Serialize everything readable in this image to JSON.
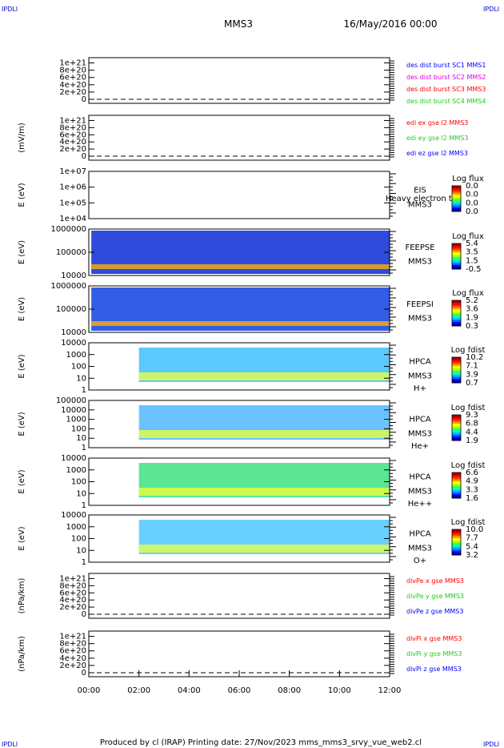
{
  "page": {
    "corner_text": "IPDLI",
    "title": "MMS3",
    "date": "16/May/2016 00:00",
    "footer": "Produced by cl (IRAP)   Printing date: 27/Nov/2023   mms_mms3_srvy_vue_web2.cl"
  },
  "colors": {
    "blue": "#0000ff",
    "magenta": "#e000e0",
    "red": "#ff0000",
    "green": "#22cc22",
    "scale": [
      "#00008b",
      "#0000ff",
      "#0060ff",
      "#00c0ff",
      "#00ffc0",
      "#40ff40",
      "#c0ff00",
      "#ffff00",
      "#ffa000",
      "#ff4000",
      "#ff0000",
      "#a00000"
    ]
  },
  "time_axis": {
    "ticks": [
      "00:00",
      "02:00",
      "04:00",
      "06:00",
      "08:00",
      "10:00",
      "12:00"
    ],
    "range_hours": [
      0,
      12
    ]
  },
  "chart_data": [
    {
      "type": "line",
      "ylabel": "",
      "yticks": [
        "1e+21",
        "8e+20",
        "6e+20",
        "4e+20",
        "2e+20",
        "0"
      ],
      "ylim": [
        0,
        1.1e+21
      ],
      "series": [
        {
          "name": "des dist burst SC1 MMS1",
          "color": "#0000ff",
          "values": []
        },
        {
          "name": "des dist burst SC2 MMS2",
          "color": "#e000e0",
          "values": []
        },
        {
          "name": "des dist burst SC3 MMS3",
          "color": "#ff0000",
          "values": []
        },
        {
          "name": "des dist burst SC4 MMS4",
          "color": "#22cc22",
          "values": []
        }
      ]
    },
    {
      "type": "line",
      "ylabel": "(mV/m)",
      "yticks": [
        "1e+21",
        "8e+20",
        "6e+20",
        "4e+20",
        "2e+20",
        "0"
      ],
      "ylim": [
        0,
        1.1e+21
      ],
      "series": [
        {
          "name": "edi ex gse l2 MMS3",
          "color": "#ff0000",
          "values": []
        },
        {
          "name": "edi ey gse l2 MMS3",
          "color": "#22cc22",
          "values": []
        },
        {
          "name": "edi ez gse l2 MMS3",
          "color": "#0000ff",
          "values": []
        }
      ]
    },
    {
      "type": "heatmap",
      "ylabel": "E (eV)",
      "yticks": [
        "1e+07",
        "1e+06",
        "1e+05",
        "1e+04"
      ],
      "log_y": true,
      "ylim": [
        10000.0,
        10000000.0
      ],
      "labels": [
        "EIS",
        "MMS3"
      ],
      "overlay_text": "Heavy electron to",
      "colorbar": {
        "title": "Log flux",
        "ticks": [
          "0.0",
          "0.0",
          "0.0",
          "0.0"
        ]
      },
      "intervals": []
    },
    {
      "type": "heatmap",
      "ylabel": "E (eV)",
      "yticks": [
        "1000000",
        "100000",
        "10000"
      ],
      "log_y": true,
      "ylim": [
        10000,
        1000000
      ],
      "labels": [
        "FEEPSE",
        "MMS3"
      ],
      "colorbar": {
        "title": "Log flux",
        "ticks": [
          "5.4",
          "3.5",
          "1.5",
          "-0.5"
        ]
      },
      "intervals": [
        [
          0.1,
          12
        ]
      ]
    },
    {
      "type": "heatmap",
      "ylabel": "E (eV)",
      "yticks": [
        "1000000",
        "100000",
        "10000"
      ],
      "log_y": true,
      "ylim": [
        10000,
        1000000
      ],
      "labels": [
        "FEEPSI",
        "MMS3"
      ],
      "colorbar": {
        "title": "Log flux",
        "ticks": [
          "5.2",
          "3.6",
          "1.9",
          "0.3"
        ]
      },
      "intervals": [
        [
          0.1,
          12
        ]
      ]
    },
    {
      "type": "heatmap",
      "ylabel": "E (eV)",
      "yticks": [
        "10000",
        "1000",
        "100",
        "10",
        "1"
      ],
      "log_y": true,
      "ylim": [
        1,
        30000
      ],
      "labels": [
        "HPCA",
        "MMS3",
        "H+"
      ],
      "colorbar": {
        "title": "Log fdist",
        "ticks": [
          "10.2",
          "7.1",
          "3.9",
          "0.7"
        ]
      },
      "intervals": [
        [
          2.0,
          12
        ]
      ]
    },
    {
      "type": "heatmap",
      "ylabel": "E (eV)",
      "yticks": [
        "100000",
        "10000",
        "1000",
        "100",
        "10",
        "1"
      ],
      "log_y": true,
      "ylim": [
        1,
        100000
      ],
      "labels": [
        "HPCA",
        "MMS3",
        "He+"
      ],
      "colorbar": {
        "title": "Log fdist",
        "ticks": [
          "9.3",
          "6.8",
          "4.4",
          "1.9"
        ]
      },
      "intervals": [
        [
          2.0,
          12
        ]
      ]
    },
    {
      "type": "heatmap",
      "ylabel": "E (eV)",
      "yticks": [
        "10000",
        "1000",
        "100",
        "10",
        "1"
      ],
      "log_y": true,
      "ylim": [
        1,
        30000
      ],
      "labels": [
        "HPCA",
        "MMS3",
        "He++"
      ],
      "colorbar": {
        "title": "Log fdist",
        "ticks": [
          "6.6",
          "4.9",
          "3.3",
          "1.6"
        ]
      },
      "intervals": [
        [
          2.0,
          12
        ]
      ]
    },
    {
      "type": "heatmap",
      "ylabel": "E (eV)",
      "yticks": [
        "10000",
        "1000",
        "100",
        "10",
        "1"
      ],
      "log_y": true,
      "ylim": [
        1,
        30000
      ],
      "labels": [
        "HPCA",
        "MMS3",
        "O+"
      ],
      "colorbar": {
        "title": "Log fdist",
        "ticks": [
          "10.0",
          "7.7",
          "5.4",
          "3.2"
        ]
      },
      "intervals": [
        [
          2.0,
          12
        ]
      ]
    },
    {
      "type": "line",
      "ylabel": "(nPa/km)",
      "yticks": [
        "1e+21",
        "8e+20",
        "6e+20",
        "4e+20",
        "2e+20",
        "0"
      ],
      "ylim": [
        0,
        1.1e+21
      ],
      "series": [
        {
          "name": "divPe x gse MMS3",
          "color": "#ff0000",
          "values": []
        },
        {
          "name": "divPe y gse MMS3",
          "color": "#22cc22",
          "values": []
        },
        {
          "name": "divPe z gse MMS3",
          "color": "#0000ff",
          "values": []
        }
      ]
    },
    {
      "type": "line",
      "ylabel": "(nPa/km)",
      "yticks": [
        "1e+21",
        "8e+20",
        "6e+20",
        "4e+20",
        "2e+20",
        "0"
      ],
      "ylim": [
        0,
        1.1e+21
      ],
      "series": [
        {
          "name": "divPi x gse MMS3",
          "color": "#ff0000",
          "values": []
        },
        {
          "name": "divPi y gse MMS3",
          "color": "#22cc22",
          "values": []
        },
        {
          "name": "divPi z gse MMS3",
          "color": "#0000ff",
          "values": []
        }
      ]
    }
  ]
}
